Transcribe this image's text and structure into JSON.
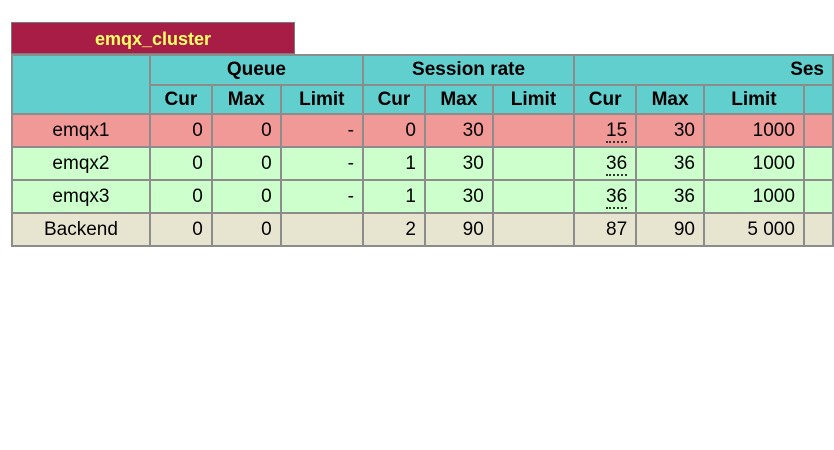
{
  "proxy": {
    "name": "emqx_cluster"
  },
  "header": {
    "groups": [
      "Queue",
      "Session rate",
      "Ses"
    ],
    "subcolumns": {
      "queue": [
        "Cur",
        "Max",
        "Limit"
      ],
      "session_rate": [
        "Cur",
        "Max",
        "Limit"
      ],
      "sessions": [
        "Cur",
        "Max",
        "Limit"
      ]
    }
  },
  "rows": [
    {
      "name": "emqx1",
      "status": "down",
      "queue": [
        "0",
        "0",
        "-"
      ],
      "session_rate": [
        "0",
        "30",
        ""
      ],
      "sessions": [
        "15",
        "30",
        "1000"
      ]
    },
    {
      "name": "emqx2",
      "status": "up",
      "queue": [
        "0",
        "0",
        "-"
      ],
      "session_rate": [
        "1",
        "30",
        ""
      ],
      "sessions": [
        "36",
        "36",
        "1000"
      ]
    },
    {
      "name": "emqx3",
      "status": "up",
      "queue": [
        "0",
        "0",
        "-"
      ],
      "session_rate": [
        "1",
        "30",
        ""
      ],
      "sessions": [
        "36",
        "36",
        "1000"
      ]
    },
    {
      "name": "Backend",
      "status": "backend",
      "queue": [
        "0",
        "0",
        ""
      ],
      "session_rate": [
        "2",
        "90",
        ""
      ],
      "sessions": [
        "87",
        "90",
        "5 000"
      ]
    }
  ],
  "colors": {
    "title_bg": "#a71d45",
    "title_text": "#ffff66",
    "header_bg": "#62cfcf",
    "down_row": "#f09996",
    "up_row": "#ccffcc",
    "backend_row": "#e7e5d0"
  }
}
